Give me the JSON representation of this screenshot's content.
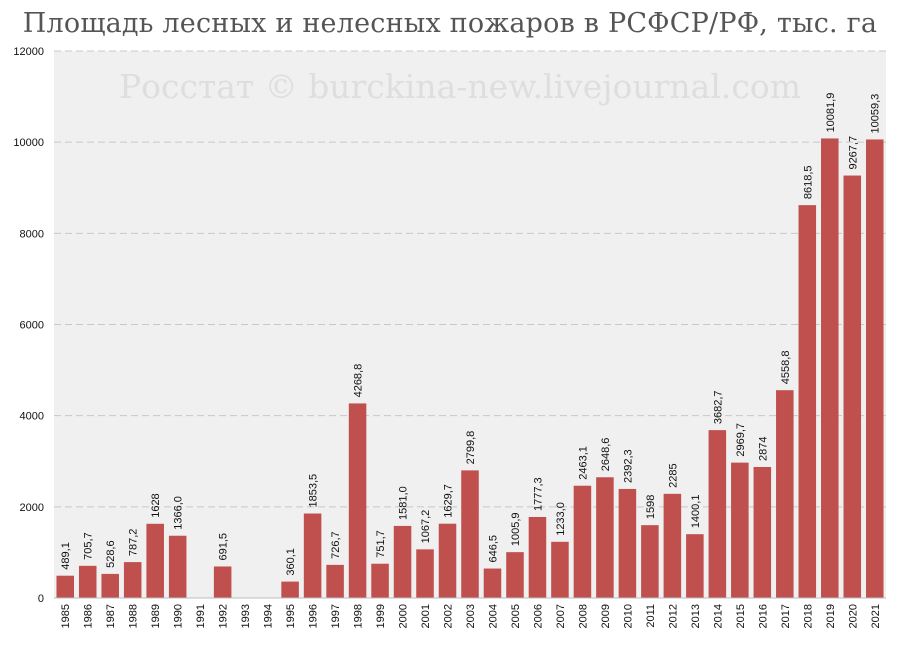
{
  "title": "Площадь лесных и нелесных пожаров в РСФСР/РФ, тыс. га",
  "watermark": "Росстат © burckina-new.livejournal.com",
  "colors": {
    "bar": "#c0504d",
    "plot_bg": "#f0f0f0",
    "grid": "#c8c8c8"
  },
  "chart_data": {
    "type": "bar",
    "title": "Площадь лесных и нелесных пожаров в РСФСР/РФ, тыс. га",
    "xlabel": "",
    "ylabel": "",
    "ylim": [
      0,
      12000
    ],
    "yticks": [
      "0",
      "2000",
      "4000",
      "6000",
      "8000",
      "10000",
      "12000"
    ],
    "grid": true,
    "categories": [
      "1985",
      "1986",
      "1987",
      "1988",
      "1989",
      "1990",
      "1991",
      "1992",
      "1993",
      "1994",
      "1995",
      "1996",
      "1997",
      "1998",
      "1999",
      "2000",
      "2001",
      "2002",
      "2003",
      "2004",
      "2005",
      "2006",
      "2007",
      "2008",
      "2009",
      "2010",
      "2011",
      "2012",
      "2013",
      "2014",
      "2015",
      "2016",
      "2017",
      "2018",
      "2019",
      "2020",
      "2021"
    ],
    "values": [
      489.1,
      705.7,
      528.6,
      787.2,
      1628,
      1366.0,
      null,
      691.5,
      null,
      null,
      360.1,
      1853.5,
      726.7,
      4268.8,
      751.7,
      1581.0,
      1067.2,
      1629.7,
      2799.8,
      646.5,
      1005.9,
      1777.3,
      1233.0,
      2463.1,
      2648.6,
      2392.3,
      1598,
      2285,
      1400.1,
      3682.7,
      2969.7,
      2874,
      4558.8,
      8618.5,
      10081.9,
      9267.7,
      10059.3
    ],
    "labels": [
      "489,1",
      "705,7",
      "528,6",
      "787,2",
      "1628",
      "1366,0",
      "",
      "691,5",
      "",
      "",
      "360,1",
      "1853,5",
      "726,7",
      "4268,8",
      "751,7",
      "1581,0",
      "1067,2",
      "1629,7",
      "2799,8",
      "646,5",
      "1005,9",
      "1777,3",
      "1233,0",
      "2463,1",
      "2648,6",
      "2392,3",
      "1598",
      "2285",
      "1400,1",
      "3682,7",
      "2969,7",
      "2874",
      "4558,8",
      "8618,5",
      "10081,9",
      "9267,7",
      "10059,3"
    ]
  }
}
